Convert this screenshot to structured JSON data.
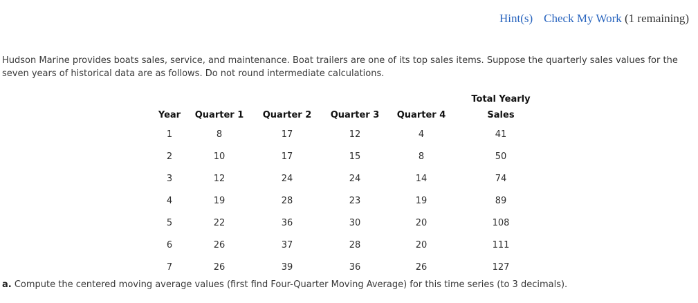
{
  "topbar": {
    "hints_label": "Hint(s)",
    "check_my_work_label": "Check My Work",
    "remaining_label": "(1 remaining)"
  },
  "colors": {
    "link_blue": "#2864be",
    "body_text": "#383838"
  },
  "intro": {
    "line1": "Hudson Marine provides boats sales, service, and maintenance. Boat trailers are one of its top sales items. Suppose the quarterly sales values for the",
    "line2": "seven years of historical data are as follows. Do not round intermediate calculations."
  },
  "table": {
    "headers": [
      "Year",
      "Quarter 1",
      "Quarter 2",
      "Quarter 3",
      "Quarter 4"
    ],
    "total_header": {
      "line1": "Total Yearly",
      "line2": "Sales"
    },
    "rows": [
      [
        "1",
        "8",
        "17",
        "12",
        "4",
        "41"
      ],
      [
        "2",
        "10",
        "17",
        "15",
        "8",
        "50"
      ],
      [
        "3",
        "12",
        "24",
        "24",
        "14",
        "74"
      ],
      [
        "4",
        "19",
        "28",
        "23",
        "19",
        "89"
      ],
      [
        "5",
        "22",
        "36",
        "30",
        "20",
        "108"
      ],
      [
        "6",
        "26",
        "37",
        "28",
        "20",
        "111"
      ],
      [
        "7",
        "26",
        "39",
        "36",
        "26",
        "127"
      ]
    ]
  },
  "part_a": {
    "label": "a.",
    "text": " Compute the centered moving average values (first find Four-Quarter Moving Average) for this time series (to 3 decimals)."
  }
}
